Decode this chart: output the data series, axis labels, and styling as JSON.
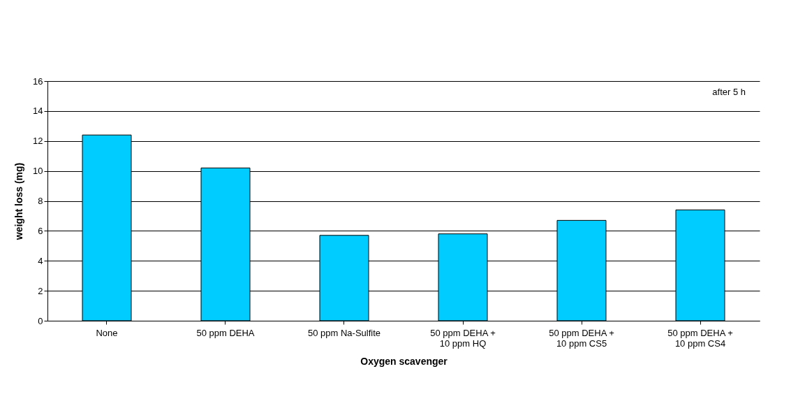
{
  "chart_data": {
    "type": "bar",
    "xlabel": "Oxygen scavenger",
    "ylabel": "weight loss (mg)",
    "categories": [
      "None",
      "50 ppm DEHA",
      "50 ppm Na-Sulfite",
      "50 ppm DEHA +\n10 ppm HQ",
      "50 ppm DEHA +\n10 ppm CS5",
      "50 ppm DEHA +\n10 ppm CS4"
    ],
    "values": [
      12.4,
      10.2,
      5.7,
      5.8,
      6.7,
      7.4
    ],
    "color": "#00ccff",
    "ylim": [
      0,
      16
    ],
    "yticks": [
      0,
      2,
      4,
      6,
      8,
      10,
      12,
      14,
      16
    ],
    "grid": "y",
    "annotations": [
      "after 5 h"
    ]
  }
}
